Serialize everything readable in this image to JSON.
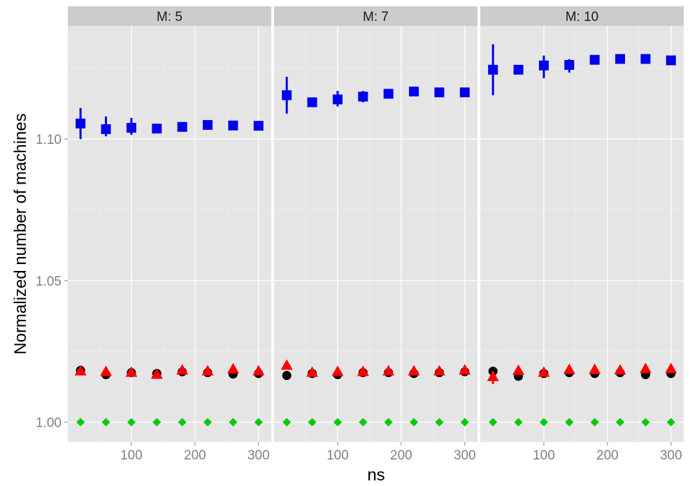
{
  "chart_data": {
    "type": "scatter",
    "facet_variable": "M",
    "facets": [
      {
        "label": "M: 5",
        "x": [
          20,
          60,
          100,
          140,
          180,
          220,
          260,
          300
        ],
        "series": [
          {
            "shape": "square",
            "color": "#0000ee",
            "y": [
              1.1055,
              1.1035,
              1.104,
              1.1037,
              1.1043,
              1.105,
              1.1048,
              1.1047
            ],
            "err_low": [
              1.1,
              1.101,
              1.1015,
              1.1025,
              null,
              null,
              null,
              null
            ],
            "err_high": [
              1.111,
              1.108,
              1.1075,
              1.1048,
              null,
              null,
              null,
              null
            ]
          },
          {
            "shape": "circle",
            "color": "#000000",
            "y": [
              1.0183,
              1.0168,
              1.0175,
              1.0172,
              1.0178,
              1.0175,
              1.017,
              1.0172
            ]
          },
          {
            "shape": "triangle",
            "color": "#ff0000",
            "y": [
              1.018,
              1.0178,
              1.0175,
              1.0168,
              1.0183,
              1.018,
              1.0187,
              1.018
            ]
          },
          {
            "shape": "diamond",
            "color": "#00cc00",
            "y": [
              1.0,
              1.0,
              1.0,
              1.0,
              1.0,
              1.0,
              1.0,
              1.0
            ]
          }
        ]
      },
      {
        "label": "M: 7",
        "x": [
          20,
          60,
          100,
          140,
          180,
          220,
          260,
          300
        ],
        "series": [
          {
            "shape": "square",
            "color": "#0000ee",
            "y": [
              1.1155,
              1.113,
              1.114,
              1.115,
              1.116,
              1.1168,
              1.1165,
              1.1165
            ],
            "err_low": [
              1.109,
              1.1118,
              1.1115,
              1.113,
              1.115,
              1.1155,
              null,
              null
            ],
            "err_high": [
              1.122,
              1.1143,
              1.117,
              1.117,
              1.1172,
              1.1178,
              null,
              null
            ]
          },
          {
            "shape": "circle",
            "color": "#000000",
            "y": [
              1.0165,
              1.0172,
              1.0168,
              1.0175,
              1.0175,
              1.0172,
              1.0175,
              1.0178
            ]
          },
          {
            "shape": "triangle",
            "color": "#ff0000",
            "y": [
              1.02,
              1.0175,
              1.0178,
              1.0178,
              1.018,
              1.018,
              1.018,
              1.0183
            ]
          },
          {
            "shape": "diamond",
            "color": "#00cc00",
            "y": [
              1.0,
              1.0,
              1.0,
              1.0,
              1.0,
              1.0,
              1.0,
              1.0
            ]
          }
        ]
      },
      {
        "label": "M: 10",
        "x": [
          20,
          60,
          100,
          140,
          180,
          220,
          260,
          300
        ],
        "series": [
          {
            "shape": "square",
            "color": "#0000ee",
            "y": [
              1.1245,
              1.1245,
              1.126,
              1.1262,
              1.128,
              1.1283,
              1.1283,
              1.1278
            ],
            "err_low": [
              1.1155,
              1.1238,
              1.1215,
              1.1235,
              null,
              null,
              null,
              null
            ],
            "err_high": [
              1.1335,
              1.1252,
              1.1295,
              1.1282,
              null,
              null,
              null,
              null
            ]
          },
          {
            "shape": "circle",
            "color": "#000000",
            "y": [
              1.018,
              1.0162,
              1.0172,
              1.0175,
              1.0172,
              1.0175,
              1.0168,
              1.0172
            ]
          },
          {
            "shape": "triangle",
            "color": "#ff0000",
            "y": [
              1.016,
              1.0182,
              1.0175,
              1.0185,
              1.0185,
              1.0183,
              1.0188,
              1.0188
            ],
            "err_low": [
              1.0135,
              null,
              null,
              null,
              null,
              null,
              null,
              null
            ],
            "err_high": [
              1.018,
              null,
              null,
              null,
              null,
              null,
              null,
              null
            ]
          },
          {
            "shape": "diamond",
            "color": "#00cc00",
            "y": [
              1.0,
              1.0,
              1.0,
              1.0,
              1.0,
              1.0,
              1.0,
              1.0
            ]
          }
        ]
      }
    ],
    "xlabel": "ns",
    "ylabel": "Normalized number of machines",
    "xlim": [
      0,
      320
    ],
    "ylim": [
      0.993,
      1.14
    ],
    "x_ticks": [
      100,
      200,
      300
    ],
    "x_tick_labels": [
      "100",
      "200",
      "300"
    ],
    "x_minor_ticks": [
      50,
      150,
      250
    ],
    "y_ticks": [
      1.0,
      1.05,
      1.1
    ],
    "y_tick_labels": [
      "1.00",
      "1.05",
      "1.10"
    ],
    "y_minor_ticks": [
      1.025,
      1.075,
      1.125
    ],
    "grid": true,
    "legend": "none"
  }
}
